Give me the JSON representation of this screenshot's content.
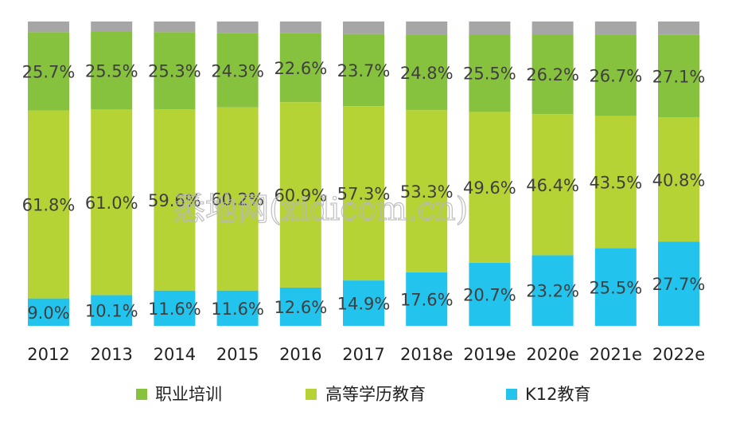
{
  "chart_data": {
    "type": "bar",
    "stacked": true,
    "normalized": true,
    "categories": [
      "2012",
      "2013",
      "2014",
      "2015",
      "2016",
      "2017",
      "2018e",
      "2019e",
      "2020e",
      "2021e",
      "2022e"
    ],
    "series": [
      {
        "name": "K12教育",
        "color": "#22c3ec",
        "values": [
          9.0,
          10.1,
          11.6,
          11.6,
          12.6,
          14.9,
          17.6,
          20.7,
          23.2,
          25.5,
          27.7
        ],
        "labels": [
          "9.0%",
          "10.1%",
          "11.6%",
          "11.6%",
          "12.6%",
          "14.9%",
          "17.6%",
          "20.7%",
          "23.2%",
          "25.5%",
          "27.7%"
        ]
      },
      {
        "name": "高等学历教育",
        "color": "#b5d334",
        "values": [
          61.8,
          61.0,
          59.6,
          60.2,
          60.9,
          57.3,
          53.3,
          49.6,
          46.4,
          43.5,
          40.8
        ],
        "labels": [
          "61.8%",
          "61.0%",
          "59.6%",
          "60.2%",
          "60.9%",
          "57.3%",
          "53.3%",
          "49.6%",
          "46.4%",
          "43.5%",
          "40.8%"
        ]
      },
      {
        "name": "职业培训",
        "color": "#86c23d",
        "values": [
          25.7,
          25.5,
          25.3,
          24.3,
          22.6,
          23.7,
          24.8,
          25.5,
          26.2,
          26.7,
          27.1
        ],
        "labels": [
          "25.7%",
          "25.5%",
          "25.3%",
          "24.3%",
          "22.6%",
          "23.7%",
          "24.8%",
          "25.5%",
          "26.2%",
          "26.7%",
          "27.1%"
        ]
      }
    ],
    "remainder_color": "#a6a6a6",
    "ylim": [
      0,
      100
    ],
    "grid": false,
    "legend": {
      "position": "bottom",
      "order": [
        "职业培训",
        "高等学历教育",
        "K12教育"
      ]
    },
    "title": "",
    "xlabel": "",
    "ylabel": ""
  },
  "watermark": {
    "text": "悉地网(xidicom.cn)"
  }
}
